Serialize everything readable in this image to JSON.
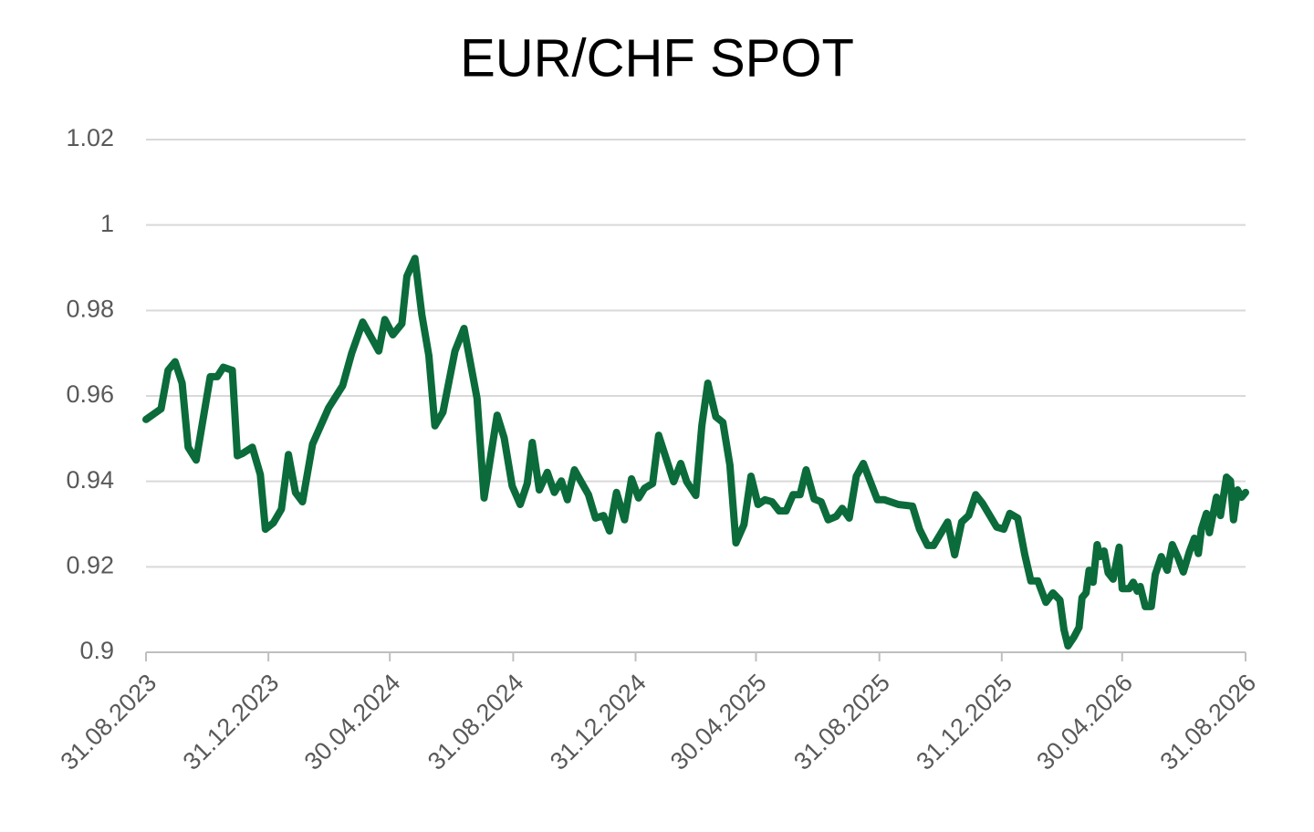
{
  "chart_data": {
    "type": "line",
    "title": "EUR/CHF SPOT",
    "x": [
      "31.08.2023",
      "15.09.2023",
      "22.09.2023",
      "29.09.2023",
      "06.10.2023",
      "12.10.2023",
      "20.10.2023",
      "03.11.2023",
      "10.11.2023",
      "16.11.2023",
      "25.11.2023",
      "30.11.2023",
      "05.12.2023",
      "15.12.2023",
      "23.12.2023",
      "28.12.2023",
      "05.01.2024",
      "13.01.2024",
      "20.01.2024",
      "27.01.2024",
      "03.02.2024",
      "13.02.2024",
      "29.02.2024",
      "14.03.2024",
      "23.03.2024",
      "03.04.2024",
      "19.04.2024",
      "25.04.2024",
      "03.05.2024",
      "12.05.2024",
      "17.05.2024",
      "25.05.2024",
      "01.06.2024",
      "08.06.2024",
      "14.06.2024",
      "22.06.2024",
      "04.07.2024",
      "13.07.2024",
      "26.07.2024",
      "02.08.2024",
      "15.08.2024",
      "22.08.2024",
      "30.08.2024",
      "07.09.2024",
      "14.09.2024",
      "19.09.2024",
      "26.09.2024",
      "04.10.2024",
      "11.10.2024",
      "18.10.2024",
      "24.10.2024",
      "31.10.2024",
      "14.11.2024",
      "21.11.2024",
      "29.11.2024",
      "05.12.2024",
      "12.12.2024",
      "20.12.2024",
      "27.12.2024",
      "03.01.2025",
      "09.01.2025",
      "17.01.2025",
      "23.01.2025",
      "07.02.2025",
      "14.02.2025",
      "20.02.2025",
      "01.03.2025",
      "07.03.2025",
      "13.03.2025",
      "21.03.2025",
      "28.03.2025",
      "04.04.2025",
      "10.04.2025",
      "18.04.2025",
      "25.04.2025",
      "02.05.2025",
      "09.05.2025",
      "16.05.2025",
      "23.05.2025",
      "30.05.2025",
      "06.06.2025",
      "13.06.2025",
      "19.06.2025",
      "27.06.2025",
      "04.07.2025",
      "11.07.2025",
      "19.07.2025",
      "25.07.2025",
      "01.08.2025",
      "08.08.2025",
      "15.08.2025",
      "29.08.2025",
      "05.09.2025",
      "19.09.2025",
      "03.10.2025",
      "10.10.2025",
      "18.10.2025",
      "24.10.2025",
      "07.11.2025",
      "14.11.2025",
      "21.11.2025",
      "28.11.2025",
      "05.12.2025",
      "12.12.2025",
      "26.12.2025",
      "02.01.2026",
      "08.01.2026",
      "16.01.2026",
      "23.01.2026",
      "29.01.2026",
      "05.02.2026",
      "13.02.2026",
      "20.02.2026",
      "27.02.2026",
      "03.03.2026",
      "07.03.2026",
      "13.03.2026",
      "18.03.2026",
      "21.03.2026",
      "25.03.2026",
      "28.03.2026",
      "01.04.2026",
      "05.04.2026",
      "08.04.2026",
      "12.04.2026",
      "16.04.2026",
      "21.04.2026",
      "27.04.2026",
      "30.04.2026",
      "07.05.2026",
      "11.05.2026",
      "15.05.2026",
      "18.05.2026",
      "23.05.2026",
      "29.05.2026",
      "02.06.2026",
      "08.06.2026",
      "14.06.2026",
      "19.06.2026",
      "25.06.2026",
      "30.06.2026",
      "06.07.2026",
      "11.07.2026",
      "15.07.2026",
      "18.07.2026",
      "23.07.2026",
      "26.07.2026",
      "02.08.2026",
      "06.08.2026",
      "12.08.2026",
      "16.08.2026",
      "19.08.2026",
      "23.08.2026",
      "27.08.2026",
      "31.08.2026"
    ],
    "series": [
      {
        "name": "EUR/CHF",
        "color": "#0b6b3a",
        "values": [
          0.9545,
          0.957,
          0.966,
          0.968,
          0.963,
          0.948,
          0.945,
          0.9645,
          0.9645,
          0.9667,
          0.966,
          0.946,
          0.9465,
          0.948,
          0.9416,
          0.9288,
          0.9303,
          0.9335,
          0.9463,
          0.9374,
          0.9352,
          0.9487,
          0.9572,
          0.9624,
          0.97,
          0.9773,
          0.9705,
          0.9779,
          0.9743,
          0.9769,
          0.988,
          0.9922,
          0.979,
          0.9694,
          0.953,
          0.9562,
          0.9705,
          0.9758,
          0.9594,
          0.9361,
          0.9555,
          0.9502,
          0.9389,
          0.9346,
          0.9395,
          0.9491,
          0.938,
          0.9421,
          0.9374,
          0.9401,
          0.9357,
          0.9427,
          0.9369,
          0.9314,
          0.932,
          0.9284,
          0.9374,
          0.931,
          0.9406,
          0.9361,
          0.9384,
          0.9395,
          0.9508,
          0.9399,
          0.9442,
          0.9399,
          0.9367,
          0.953,
          0.963,
          0.9551,
          0.9538,
          0.9438,
          0.9256,
          0.9299,
          0.9412,
          0.9346,
          0.9357,
          0.9352,
          0.9331,
          0.9331,
          0.9369,
          0.9369,
          0.9427,
          0.9359,
          0.9352,
          0.931,
          0.9318,
          0.9337,
          0.9314,
          0.9412,
          0.9442,
          0.9357,
          0.9357,
          0.9346,
          0.9342,
          0.9288,
          0.925,
          0.925,
          0.9305,
          0.9228,
          0.9305,
          0.932,
          0.9369,
          0.9348,
          0.9293,
          0.9288,
          0.9325,
          0.9314,
          0.9228,
          0.9167,
          0.9167,
          0.9117,
          0.9139,
          0.9122,
          0.9053,
          0.9015,
          0.9036,
          0.9058,
          0.9128,
          0.9139,
          0.9192,
          0.9164,
          0.9252,
          0.9224,
          0.9237,
          0.9186,
          0.9171,
          0.9246,
          0.9149,
          0.9149,
          0.9164,
          0.9143,
          0.9154,
          0.9107,
          0.9107,
          0.9182,
          0.9224,
          0.9192,
          0.9252,
          0.922,
          0.9188,
          0.9235,
          0.9267,
          0.9231,
          0.9288,
          0.9325,
          0.928,
          0.9363,
          0.932,
          0.941,
          0.9401,
          0.931,
          0.938,
          0.9363,
          0.9374
        ]
      }
    ],
    "xlim": [
      "31.08.2023",
      "31.08.2026"
    ],
    "xticks": [
      "31.08.2023",
      "31.12.2023",
      "30.04.2024",
      "31.08.2024",
      "31.12.2024",
      "30.04.2025",
      "31.08.2025",
      "31.12.2025",
      "30.04.2026",
      "31.08.2026"
    ],
    "ylim": [
      0.9,
      1.02
    ],
    "yticks": [
      0.9,
      0.92,
      0.94,
      0.96,
      0.98,
      1,
      1.02
    ],
    "grid": true
  }
}
